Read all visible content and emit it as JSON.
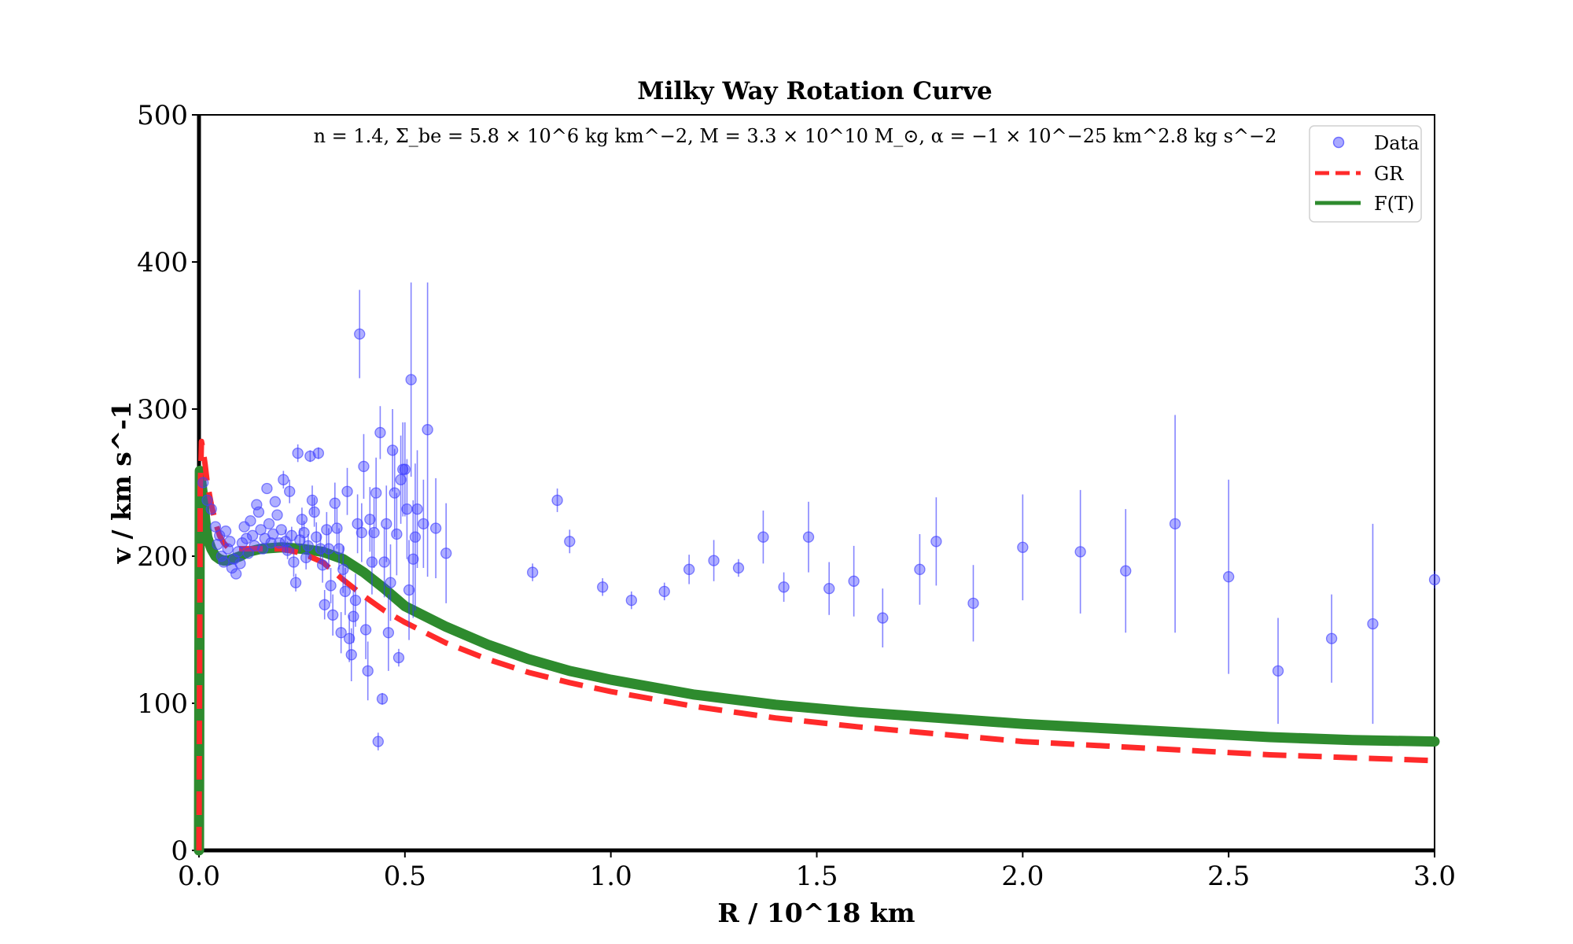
{
  "chart_data": {
    "type": "scatter",
    "title": "Milky Way Rotation Curve",
    "xlabel": "R / 10^18 km",
    "ylabel": "v / km s^-1",
    "xlim": [
      0,
      3
    ],
    "ylim": [
      0,
      500
    ],
    "x_ticks": [
      "0.0",
      "0.5",
      "1.0",
      "1.5",
      "2.0",
      "2.5",
      "3.0"
    ],
    "y_ticks": [
      "0",
      "100",
      "200",
      "300",
      "400",
      "500"
    ],
    "annotation": "n = 1.4, Σ_be = 5.8 × 10^6 kg km^−2, M = 3.3 × 10^10 M_⊙, α = −1 × 10^−25 km^2.8 kg s^−2",
    "legend": {
      "position": "top-right",
      "entries": [
        {
          "label": "Data",
          "style": "marker"
        },
        {
          "label": "GR",
          "style": "dashed"
        },
        {
          "label": "F(T)",
          "style": "solid"
        }
      ]
    },
    "colors": {
      "data": "#4040ff",
      "data_error": "#3333ff",
      "gr": "#ff2a2a",
      "ft": "#2e8b2e"
    },
    "series": [
      {
        "name": "Data",
        "type": "scatter",
        "points": [
          [
            0.01,
            250,
            0
          ],
          [
            0.02,
            238,
            0
          ],
          [
            0.03,
            232,
            0
          ],
          [
            0.04,
            220,
            0
          ],
          [
            0.045,
            208,
            0
          ],
          [
            0.05,
            214,
            0
          ],
          [
            0.055,
            200,
            0
          ],
          [
            0.06,
            196,
            0
          ],
          [
            0.065,
            217,
            0
          ],
          [
            0.07,
            205,
            0
          ],
          [
            0.075,
            210,
            0
          ],
          [
            0.08,
            192,
            0
          ],
          [
            0.085,
            198,
            0
          ],
          [
            0.09,
            188,
            0
          ],
          [
            0.095,
            203,
            0
          ],
          [
            0.1,
            195,
            0
          ],
          [
            0.105,
            209,
            0
          ],
          [
            0.11,
            220,
            0
          ],
          [
            0.115,
            212,
            0
          ],
          [
            0.12,
            202,
            0
          ],
          [
            0.125,
            224,
            0
          ],
          [
            0.13,
            214,
            0
          ],
          [
            0.135,
            207,
            0
          ],
          [
            0.14,
            235,
            0
          ],
          [
            0.145,
            230,
            0
          ],
          [
            0.15,
            218,
            0
          ],
          [
            0.155,
            205,
            0
          ],
          [
            0.16,
            212,
            0
          ],
          [
            0.165,
            246,
            0
          ],
          [
            0.17,
            222,
            0
          ],
          [
            0.175,
            209,
            0
          ],
          [
            0.18,
            215,
            0
          ],
          [
            0.185,
            237,
            0
          ],
          [
            0.19,
            228,
            0
          ],
          [
            0.195,
            209,
            0
          ],
          [
            0.2,
            218,
            0
          ],
          [
            0.205,
            252,
            6
          ],
          [
            0.21,
            210,
            8
          ],
          [
            0.215,
            204,
            6
          ],
          [
            0.22,
            244,
            8
          ],
          [
            0.225,
            214,
            6
          ],
          [
            0.23,
            196,
            10
          ],
          [
            0.235,
            182,
            6
          ],
          [
            0.24,
            270,
            6
          ],
          [
            0.245,
            211,
            8
          ],
          [
            0.25,
            225,
            8
          ],
          [
            0.255,
            216,
            8
          ],
          [
            0.26,
            199,
            8
          ],
          [
            0.265,
            207,
            8
          ],
          [
            0.27,
            268,
            4
          ],
          [
            0.275,
            238,
            10
          ],
          [
            0.28,
            230,
            10
          ],
          [
            0.285,
            213,
            10
          ],
          [
            0.29,
            270,
            4
          ],
          [
            0.295,
            205,
            10
          ],
          [
            0.3,
            194,
            12
          ],
          [
            0.305,
            167,
            10
          ],
          [
            0.31,
            218,
            12
          ],
          [
            0.315,
            205,
            14
          ],
          [
            0.32,
            180,
            12
          ],
          [
            0.325,
            160,
            14
          ],
          [
            0.33,
            236,
            14
          ],
          [
            0.335,
            219,
            14
          ],
          [
            0.34,
            205,
            14
          ],
          [
            0.345,
            148,
            14
          ],
          [
            0.35,
            191,
            16
          ],
          [
            0.355,
            176,
            16
          ],
          [
            0.36,
            244,
            16
          ],
          [
            0.365,
            144,
            16
          ],
          [
            0.37,
            133,
            18
          ],
          [
            0.375,
            159,
            18
          ],
          [
            0.38,
            170,
            18
          ],
          [
            0.385,
            222,
            20
          ],
          [
            0.39,
            351,
            30
          ],
          [
            0.395,
            216,
            20
          ],
          [
            0.4,
            261,
            22
          ],
          [
            0.405,
            150,
            20
          ],
          [
            0.41,
            122,
            20
          ],
          [
            0.415,
            225,
            22
          ],
          [
            0.42,
            196,
            22
          ],
          [
            0.425,
            216,
            24
          ],
          [
            0.43,
            243,
            24
          ],
          [
            0.435,
            74,
            6
          ],
          [
            0.44,
            284,
            18
          ],
          [
            0.445,
            103,
            4
          ],
          [
            0.45,
            196,
            24
          ],
          [
            0.455,
            222,
            26
          ],
          [
            0.46,
            148,
            26
          ],
          [
            0.465,
            182,
            26
          ],
          [
            0.47,
            272,
            28
          ],
          [
            0.475,
            243,
            30
          ],
          [
            0.48,
            215,
            28
          ],
          [
            0.485,
            131,
            6
          ],
          [
            0.49,
            252,
            30
          ],
          [
            0.495,
            259,
            32
          ],
          [
            0.5,
            259,
            32
          ],
          [
            0.505,
            232,
            34
          ],
          [
            0.51,
            177,
            34
          ],
          [
            0.515,
            320,
            66
          ],
          [
            0.52,
            198,
            40
          ],
          [
            0.525,
            213,
            50
          ],
          [
            0.53,
            232,
            40
          ],
          [
            0.545,
            222,
            30
          ],
          [
            0.555,
            286,
            100
          ],
          [
            0.575,
            219,
            34
          ],
          [
            0.6,
            202,
            34
          ],
          [
            0.81,
            189,
            6
          ],
          [
            0.87,
            238,
            8
          ],
          [
            0.9,
            210,
            8
          ],
          [
            0.98,
            179,
            6
          ],
          [
            1.05,
            170,
            6
          ],
          [
            1.13,
            176,
            6
          ],
          [
            1.19,
            191,
            10
          ],
          [
            1.25,
            197,
            14
          ],
          [
            1.31,
            192,
            6
          ],
          [
            1.37,
            213,
            18
          ],
          [
            1.42,
            179,
            10
          ],
          [
            1.48,
            213,
            24
          ],
          [
            1.53,
            178,
            18
          ],
          [
            1.59,
            183,
            24
          ],
          [
            1.66,
            158,
            20
          ],
          [
            1.75,
            191,
            24
          ],
          [
            1.79,
            210,
            30
          ],
          [
            1.88,
            168,
            26
          ],
          [
            2.0,
            206,
            36
          ],
          [
            2.14,
            203,
            42
          ],
          [
            2.25,
            190,
            42
          ],
          [
            2.37,
            222,
            74
          ],
          [
            2.5,
            186,
            66
          ],
          [
            2.62,
            122,
            36
          ],
          [
            2.75,
            144,
            30
          ],
          [
            2.85,
            154,
            68
          ],
          [
            3.0,
            184,
            6
          ]
        ]
      },
      {
        "name": "GR",
        "type": "line",
        "points": [
          [
            0.0,
            0
          ],
          [
            0.003,
            245
          ],
          [
            0.006,
            278
          ],
          [
            0.01,
            272
          ],
          [
            0.015,
            262
          ],
          [
            0.02,
            250
          ],
          [
            0.03,
            235
          ],
          [
            0.04,
            223
          ],
          [
            0.05,
            214
          ],
          [
            0.06,
            209
          ],
          [
            0.07,
            206
          ],
          [
            0.08,
            205
          ],
          [
            0.1,
            205
          ],
          [
            0.12,
            205
          ],
          [
            0.15,
            205
          ],
          [
            0.2,
            205
          ],
          [
            0.25,
            202
          ],
          [
            0.3,
            196
          ],
          [
            0.35,
            184
          ],
          [
            0.4,
            173
          ],
          [
            0.45,
            163
          ],
          [
            0.5,
            155
          ],
          [
            0.6,
            141
          ],
          [
            0.7,
            130
          ],
          [
            0.8,
            121
          ],
          [
            0.9,
            114
          ],
          [
            1.0,
            108
          ],
          [
            1.2,
            98
          ],
          [
            1.4,
            90
          ],
          [
            1.6,
            84
          ],
          [
            1.8,
            79
          ],
          [
            2.0,
            74
          ],
          [
            2.2,
            71
          ],
          [
            2.4,
            68
          ],
          [
            2.6,
            65
          ],
          [
            2.8,
            63
          ],
          [
            3.0,
            61
          ]
        ]
      },
      {
        "name": "F(T)",
        "type": "line",
        "points": [
          [
            0.0,
            0
          ],
          [
            0.002,
            258
          ],
          [
            0.005,
            252
          ],
          [
            0.01,
            240
          ],
          [
            0.015,
            225
          ],
          [
            0.02,
            213
          ],
          [
            0.03,
            205
          ],
          [
            0.04,
            200
          ],
          [
            0.05,
            198
          ],
          [
            0.06,
            197
          ],
          [
            0.07,
            197
          ],
          [
            0.08,
            198
          ],
          [
            0.1,
            200
          ],
          [
            0.12,
            203
          ],
          [
            0.15,
            205
          ],
          [
            0.2,
            206
          ],
          [
            0.25,
            205
          ],
          [
            0.3,
            203
          ],
          [
            0.35,
            198
          ],
          [
            0.4,
            189
          ],
          [
            0.45,
            178
          ],
          [
            0.5,
            166
          ],
          [
            0.6,
            152
          ],
          [
            0.7,
            140
          ],
          [
            0.8,
            130
          ],
          [
            0.9,
            122
          ],
          [
            1.0,
            116
          ],
          [
            1.2,
            106
          ],
          [
            1.4,
            99
          ],
          [
            1.6,
            94
          ],
          [
            1.8,
            90
          ],
          [
            2.0,
            86
          ],
          [
            2.2,
            83
          ],
          [
            2.4,
            80
          ],
          [
            2.6,
            77
          ],
          [
            2.8,
            75
          ],
          [
            3.0,
            74
          ]
        ]
      }
    ]
  }
}
